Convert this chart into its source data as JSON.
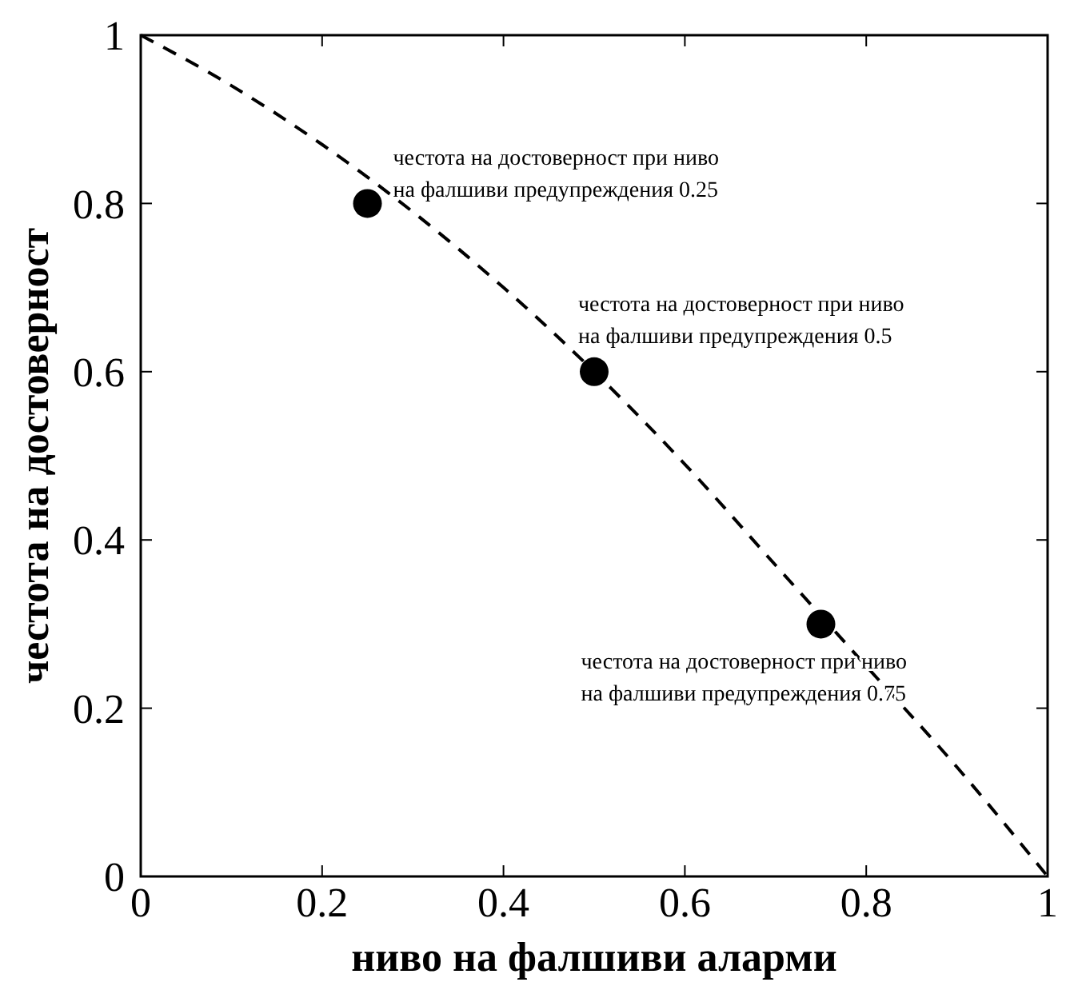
{
  "chart_data": {
    "type": "scatter",
    "xlabel": "ниво на фалшиви аларми",
    "ylabel": "честота на достоверност",
    "xlim": [
      0,
      1
    ],
    "ylim": [
      0,
      1
    ],
    "xticks": [
      0,
      0.2,
      0.4,
      0.6,
      0.8,
      1
    ],
    "yticks": [
      0,
      0.2,
      0.4,
      0.6,
      0.8,
      1
    ],
    "grid": false,
    "series": [
      {
        "type": "line",
        "color": "#000000",
        "line_style": "dashed",
        "marker": "none",
        "x": [
          0,
          0.1,
          0.2,
          0.3,
          0.4,
          0.5,
          0.6,
          0.7,
          0.8,
          0.9,
          1
        ],
        "values": [
          1,
          0.94,
          0.87,
          0.79,
          0.7,
          0.6,
          0.49,
          0.37,
          0.25,
          0.13,
          0
        ]
      },
      {
        "type": "scatter",
        "color": "#000000",
        "marker": "circle",
        "x": [
          0.25,
          0.5,
          0.75
        ],
        "values": [
          0.8,
          0.6,
          0.3
        ]
      }
    ],
    "annotations": [
      {
        "text": "честота на достоверност при ниво на фалшиви предупреждения 0.25",
        "x": 0.25,
        "y": 0.8
      },
      {
        "text": "честота на достоверност при ниво на фалшиви предупреждения 0.5",
        "x": 0.5,
        "y": 0.6
      },
      {
        "text": "честота на достоверност при ниво на фалшиви предупреждения 0.75",
        "x": 0.75,
        "y": 0.3
      }
    ]
  }
}
